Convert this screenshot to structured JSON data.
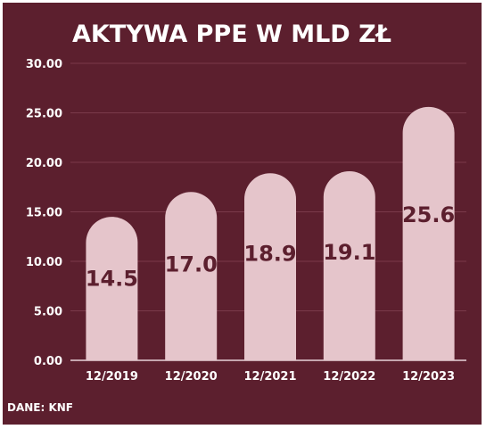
{
  "chart_data": {
    "type": "bar",
    "title": "AKTYWA PPE W MLD ZŁ",
    "categories": [
      "12/2019",
      "12/2020",
      "12/2021",
      "12/2022",
      "12/2023"
    ],
    "values": [
      14.5,
      17.0,
      18.9,
      19.1,
      25.6
    ],
    "value_labels": [
      "14.5",
      "17.0",
      "18.9",
      "19.1",
      "25.6"
    ],
    "y_ticks": [
      "0.00",
      "5.00",
      "10.00",
      "15.00",
      "20.00",
      "25.00",
      "30.00"
    ],
    "ylim": [
      0,
      30
    ],
    "grid": true,
    "source": "DANE: KNF"
  },
  "colors": {
    "background": "#5c1f2e",
    "bar": "#e5c5cb",
    "data_label": "#5c1f2e",
    "text": "#ffffff",
    "grid": "#7a3a4a"
  }
}
